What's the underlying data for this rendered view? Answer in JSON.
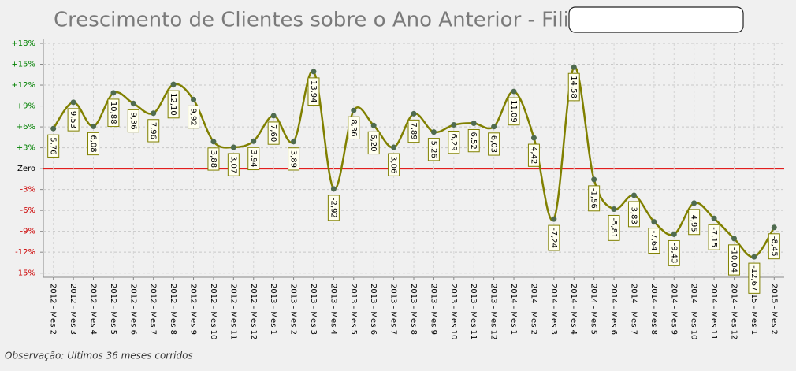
{
  "chart_data": {
    "type": "line",
    "title": "Crescimento de Clientes sobre o Ano Anterior - Filial",
    "note": "Observação: Ultimos 36 meses corridos",
    "categories": [
      "2012 - Mes 2",
      "2012 - Mes 3",
      "2012 - Mes 4",
      "2012 - Mes 5",
      "2012 - Mes 6",
      "2012 - Mes 7",
      "2012 - Mes 8",
      "2012 - Mes 9",
      "2012 - Mes 10",
      "2012 - Mes 11",
      "2012 - Mes 12",
      "2013 - Mes 1",
      "2013 - Mes 2",
      "2013 - Mes 3",
      "2013 - Mes 4",
      "2013 - Mes 5",
      "2013 - Mes 6",
      "2013 - Mes 7",
      "2013 - Mes 8",
      "2013 - Mes 9",
      "2013 - Mes 10",
      "2013 - Mes 11",
      "2013 - Mes 12",
      "2014 - Mes 1",
      "2014 - Mes 2",
      "2014 - Mes 3",
      "2014 - Mes 4",
      "2014 - Mes 5",
      "2014 - Mes 6",
      "2014 - Mes 7",
      "2014 - Mes 8",
      "2014 - Mes 9",
      "2014 - Mes 10",
      "2014 - Mes 11",
      "2014 - Mes 12",
      "2015 - Mes 1",
      "2015 - Mes 2"
    ],
    "values": [
      5.76,
      9.53,
      6.08,
      10.88,
      9.36,
      7.96,
      12.1,
      9.92,
      3.88,
      3.07,
      3.94,
      7.6,
      3.89,
      13.94,
      -2.92,
      8.36,
      6.2,
      3.06,
      7.89,
      5.26,
      6.29,
      6.52,
      6.03,
      11.09,
      4.42,
      -7.24,
      14.58,
      -1.56,
      -5.81,
      -3.83,
      -7.64,
      -9.43,
      -4.95,
      -7.15,
      -10.04,
      -12.67,
      -8.45
    ],
    "value_labels": [
      "5,76",
      "9,53",
      "6,08",
      "10,88",
      "9,36",
      "7,96",
      "12,10",
      "9,92",
      "3,88",
      "3,07",
      "3,94",
      "7,60",
      "3,89",
      "13,94",
      "-2,92",
      "8,36",
      "6,20",
      "3,06",
      "7,89",
      "5,26",
      "6,29",
      "6,52",
      "6,03",
      "11,09",
      "4,42",
      "-7,24",
      "14,58",
      "-1,56",
      "-5,81",
      "-3,83",
      "-7,64",
      "-9,43",
      "-4,95",
      "-7,15",
      "-10,04",
      "-12,67",
      "-8,45"
    ],
    "color": "#808000",
    "marker_color": "#4f6b4f",
    "ylim": [
      -15.6,
      18
    ],
    "yticks": [
      {
        "value": -15,
        "label": "-15%"
      },
      {
        "value": -12,
        "label": "-12%"
      },
      {
        "value": -9,
        "label": "-9%"
      },
      {
        "value": -6,
        "label": "-6%"
      },
      {
        "value": -3,
        "label": "-3%"
      },
      {
        "value": 0,
        "label": "Zero"
      },
      {
        "value": 3,
        "label": "+3%"
      },
      {
        "value": 6,
        "label": "+6%"
      },
      {
        "value": 9,
        "label": "+9%"
      },
      {
        "value": 12,
        "label": "+12%"
      },
      {
        "value": 15,
        "label": "+15%"
      },
      {
        "value": 18,
        "label": "+18%"
      }
    ],
    "grid": true,
    "smooth": true,
    "positive_color": "#008000",
    "negative_color": "#cc0000",
    "zero_line_color": "#e00000"
  }
}
